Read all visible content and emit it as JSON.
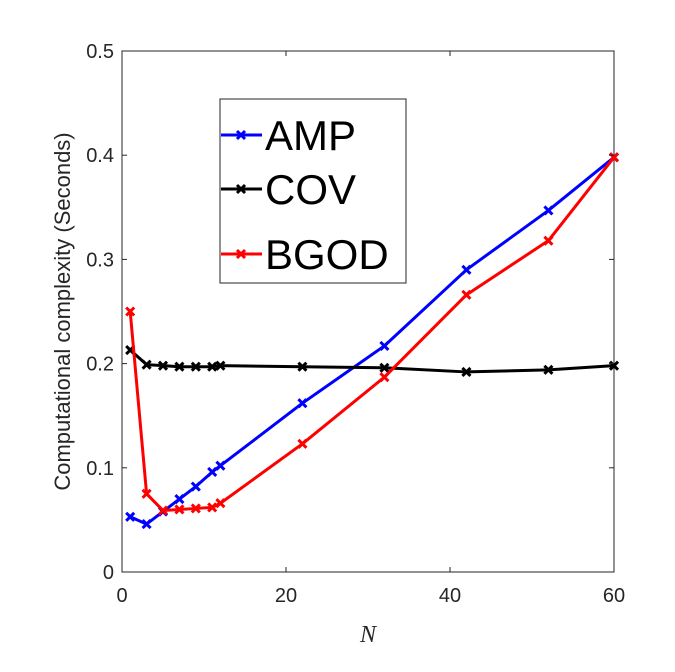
{
  "chart_data": {
    "type": "line",
    "xlabel": "N",
    "ylabel": "Computational complexity (Seconds)",
    "xlim": [
      0,
      60
    ],
    "ylim": [
      0,
      0.5
    ],
    "xticks": [
      "0",
      "20",
      "40",
      "60"
    ],
    "yticks": [
      "0",
      "0.1",
      "0.2",
      "0.3",
      "0.4",
      "0.5"
    ],
    "grid": false,
    "legend_position": "top-left",
    "series": [
      {
        "name": "AMP",
        "color": "#0000ff",
        "marker": "x",
        "x": [
          1,
          3,
          5,
          7,
          9,
          11,
          12,
          22,
          32,
          42,
          52,
          60
        ],
        "y": [
          0.053,
          0.046,
          0.058,
          0.07,
          0.082,
          0.096,
          0.102,
          0.162,
          0.217,
          0.29,
          0.347,
          0.398
        ]
      },
      {
        "name": "COV",
        "color": "#000000",
        "marker": "x",
        "x": [
          1,
          3,
          5,
          7,
          9,
          11,
          12,
          22,
          32,
          42,
          52,
          60
        ],
        "y": [
          0.213,
          0.199,
          0.198,
          0.197,
          0.197,
          0.197,
          0.198,
          0.197,
          0.196,
          0.192,
          0.194,
          0.198
        ]
      },
      {
        "name": "BGOD",
        "color": "#ff0000",
        "marker": "x",
        "x": [
          1,
          3,
          5,
          7,
          9,
          11,
          12,
          22,
          32,
          42,
          52,
          60
        ],
        "y": [
          0.25,
          0.075,
          0.059,
          0.06,
          0.061,
          0.062,
          0.066,
          0.123,
          0.187,
          0.266,
          0.318,
          0.398
        ]
      }
    ]
  }
}
